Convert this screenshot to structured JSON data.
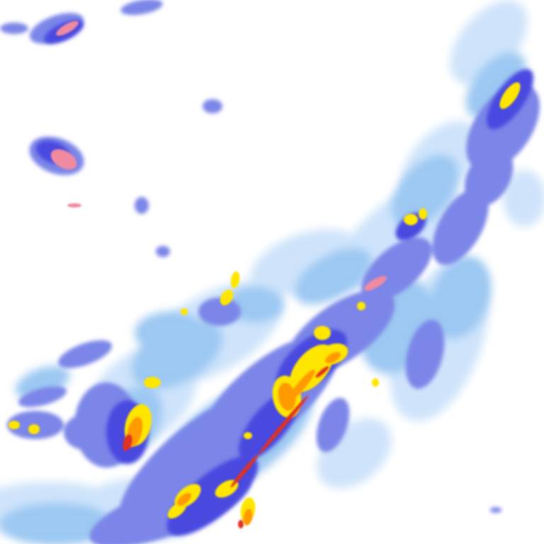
{
  "map": {
    "kind": "weather-radar-reflectivity-tile",
    "palette": {
      "background": "#ffffff",
      "very_light": "#cfe4fb",
      "light": "#9cc8f2",
      "medium": "#7b86e8",
      "strong": "#4a4ae0",
      "heavy": "#ffe600",
      "very_heavy": "#ff9a00",
      "extreme": "#e03020",
      "clutter": "#f08aa0"
    }
  }
}
